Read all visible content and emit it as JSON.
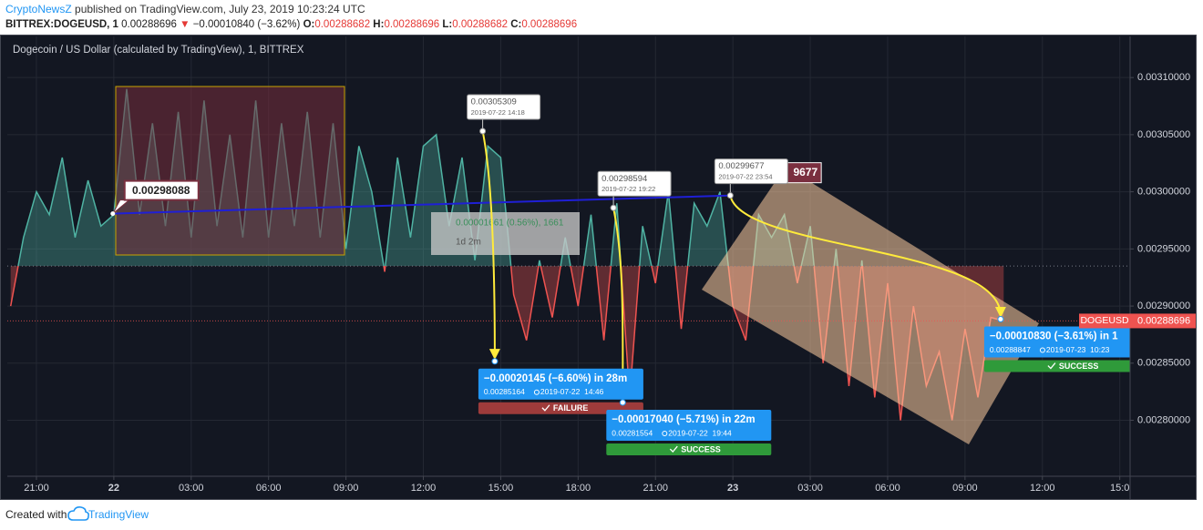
{
  "header": {
    "author": "CryptoNewsZ",
    "published": " published on TradingView.com, July 23, 2019 10:23:24 UTC",
    "symbol": "BITTREX:DOGEUSD, 1",
    "last": " 0.00288696 ",
    "arrow": "▼",
    "change": " −0.00010840 (−3.62%) ",
    "ohlc": [
      {
        "label": "O:",
        "value": "0.00288682 "
      },
      {
        "label": "H:",
        "value": "0.00288696 "
      },
      {
        "label": "L:",
        "value": "0.00288682 "
      },
      {
        "label": "C:",
        "value": "0.00288696"
      }
    ]
  },
  "chart_data": {
    "type": "line",
    "title": "Dogecoin / US Dollar (calculated by TradingView), 1, BITTREX",
    "x": [
      -1,
      -0.5,
      0,
      0.5,
      1,
      1.5,
      2,
      2.5,
      3,
      3.5,
      4,
      4.5,
      5,
      5.5,
      6,
      6.5,
      7,
      7.5,
      8,
      8.5,
      9,
      9.5,
      10,
      10.5,
      11,
      11.5,
      12,
      12.5,
      13,
      13.5,
      14,
      14.5,
      15,
      15.5,
      16,
      16.5,
      17,
      17.5,
      18,
      18.5,
      19,
      19.5,
      20,
      20.5,
      21,
      21.5,
      22,
      22.5,
      23,
      23.5,
      24,
      24.5,
      25,
      25.5,
      26,
      26.5,
      27,
      27.5,
      28,
      28.5,
      29,
      29.5,
      30,
      30.5,
      31,
      31.5,
      32,
      32.5,
      33,
      33.5,
      34,
      34.5,
      35,
      35.5,
      36,
      36.5,
      37,
      37.5
    ],
    "series": [
      {
        "name": "DOGEUSD",
        "color": "#4fb3a3",
        "down_color": "#ef5350",
        "values": [
          0.0029,
          0.00296,
          0.003,
          0.00298,
          0.00303,
          0.00296,
          0.00301,
          0.00297,
          0.00298,
          0.00309,
          0.00298,
          0.00306,
          0.00297,
          0.00307,
          0.00296,
          0.00308,
          0.00297,
          0.00305,
          0.00296,
          0.00308,
          0.00296,
          0.00306,
          0.00297,
          0.00307,
          0.00296,
          0.00306,
          0.00295,
          0.00304,
          0.003,
          0.00293,
          0.00303,
          0.00296,
          0.00304,
          0.00305,
          0.00297,
          0.00303,
          0.00294,
          0.00304,
          0.00303,
          0.00291,
          0.00287,
          0.00294,
          0.00289,
          0.00296,
          0.0029,
          0.00298,
          0.00287,
          0.00299,
          0.00282,
          0.00297,
          0.00292,
          0.003,
          0.00288,
          0.00299,
          0.00297,
          0.003,
          0.0029,
          0.00287,
          0.00298,
          0.00296,
          0.00298,
          0.00292,
          0.00297,
          0.00285,
          0.00295,
          0.00283,
          0.00294,
          0.00282,
          0.00292,
          0.0028,
          0.0029,
          0.00283,
          0.00286,
          0.0028,
          0.00288,
          0.00282,
          0.00289,
          0.00288696
        ]
      }
    ],
    "baseline": 0.002935,
    "xlim": [
      -1.13,
      42.4
    ],
    "xticks": [
      {
        "value": 0,
        "label": "21:00"
      },
      {
        "value": 3,
        "label": "22"
      },
      {
        "value": 6,
        "label": "03:00"
      },
      {
        "value": 9,
        "label": "06:00"
      },
      {
        "value": 12,
        "label": "09:00"
      },
      {
        "value": 15,
        "label": "12:00"
      },
      {
        "value": 18,
        "label": "15:00"
      },
      {
        "value": 21,
        "label": "18:00"
      },
      {
        "value": 24,
        "label": "21:00"
      },
      {
        "value": 27,
        "label": "23"
      },
      {
        "value": 30,
        "label": "03:00"
      },
      {
        "value": 33,
        "label": "06:00"
      },
      {
        "value": 36,
        "label": "09:00"
      },
      {
        "value": 39,
        "label": "12:00"
      },
      {
        "value": 42,
        "label": "15:0"
      }
    ],
    "ylim": [
      0.002751,
      0.003136
    ],
    "yticks": [
      {
        "value": 0.0028,
        "label": "0.00280000"
      },
      {
        "value": 0.00285,
        "label": "0.00285000"
      },
      {
        "value": 0.0029,
        "label": "0.00290000"
      },
      {
        "value": 0.00295,
        "label": "0.00295000"
      },
      {
        "value": 0.003,
        "label": "0.00300000"
      },
      {
        "value": 0.00305,
        "label": "0.00305000"
      },
      {
        "value": 0.0031,
        "label": "0.00310000"
      }
    ],
    "grid": true,
    "last_price": {
      "name": "DOGEUSD",
      "value": 0.00288696,
      "value_label": "0.00288696",
      "color": "#ef5350"
    },
    "trend_line": {
      "color": "#1f1fd6",
      "start": {
        "x": 2.96,
        "y": 0.00298088,
        "label": "0.00298088"
      },
      "end": {
        "x": 27.0,
        "y": 0.00299677,
        "label": "9677"
      },
      "measure": {
        "label": "0.00001661 (0.56%), 1661",
        "duration": "1d 2m"
      }
    },
    "callouts": [
      {
        "x": 17.3,
        "y": 0.00305309,
        "price": "0.00305309",
        "time": "2019-07-22 14:18"
      },
      {
        "x": 22.37,
        "y": 0.00298594,
        "price": "0.00298594",
        "time": "2019-07-22 19:22"
      },
      {
        "x": 26.9,
        "y": 0.00299677,
        "price": "0.00299677",
        "time": "2019-07-22 23:54"
      }
    ],
    "forecasts": [
      {
        "from": 0,
        "x": 17.77,
        "y": 0.00285164,
        "change": "−0.00020145 (−6.60%) in 28m",
        "price": "0.00285164",
        "time": "2019-07-22  14:46",
        "status": "FAILURE",
        "status_color": "#9e3b3b"
      },
      {
        "from": 1,
        "x": 22.73,
        "y": 0.00281554,
        "change": "−0.00017040 (−5.71%) in 22m",
        "price": "0.00281554",
        "time": "2019-07-22  19:44",
        "status": "SUCCESS",
        "status_color": "#2f9a3a"
      },
      {
        "from": 2,
        "x": 37.38,
        "y": 0.00288847,
        "change": "−0.00010830 (−3.61%) in 1",
        "price": "0.00288847",
        "time": "2019-07-23  10:23",
        "status": "SUCCESS",
        "status_color": "#2f9a3a"
      }
    ]
  },
  "footer": {
    "text": "Created with",
    "brand": "TradingView"
  }
}
